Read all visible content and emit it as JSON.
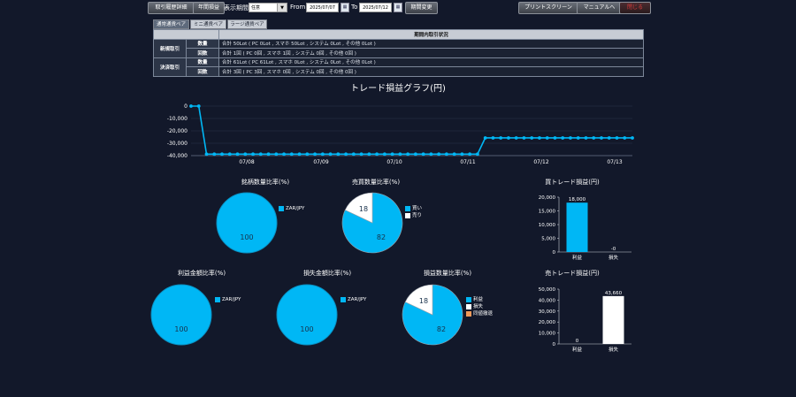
{
  "toolbar": {
    "trade_detail": "取引履歴詳細",
    "annual_pnl": "年間損益",
    "period_label": "表示期間",
    "period_value": "任意",
    "from_label": "From",
    "from_date": "2025/07/07",
    "to_label": "To",
    "to_date": "2025/07/12",
    "change_period": "期間変更",
    "print_screen": "プリントスクリーン",
    "manual": "マニュアルへ",
    "close": "閉じる"
  },
  "tabs": [
    "通常通貨ペア",
    "ミニ通貨ペア",
    "ラージ通貨ペア"
  ],
  "summary": {
    "header": "期間内取引状況",
    "groups": [
      {
        "label": "新規取引",
        "rows": [
          {
            "label": "数量",
            "value": "合計 50Lot ( PC 0Lot , スマホ 50Lot , システム 0Lot , その他 0Lot )"
          },
          {
            "label": "回数",
            "value": "合計 1回 ( PC 0回 , スマホ 1回 , システム 0回 , その他 0回 )"
          }
        ]
      },
      {
        "label": "決済取引",
        "rows": [
          {
            "label": "数量",
            "value": "合計 61Lot ( PC 61Lot , スマホ 0Lot , システム 0Lot , その他 0Lot )"
          },
          {
            "label": "回数",
            "value": "合計 3回 ( PC 3回 , スマホ 0回 , システム 0回 , その他 0回 )"
          }
        ]
      }
    ]
  },
  "colors": {
    "blue": "#00b7f5",
    "white": "#ffffff",
    "orange": "#f09a5a"
  },
  "chart_data": [
    {
      "type": "line",
      "title": "トレード損益グラフ(円)",
      "yticks": [
        0,
        -10000,
        -20000,
        -30000,
        -40000
      ],
      "ytick_labels": [
        "0",
        "-10,000",
        "-20,000",
        "-30,000",
        "-40,000"
      ],
      "ylim": [
        -40000,
        0
      ],
      "xtick_labels": [
        "07/08",
        "07/09",
        "07/10",
        "07/11",
        "07/12",
        "07/13"
      ],
      "series": [
        {
          "values": [
            0,
            0,
            -38800,
            -38800,
            -38800,
            -38800,
            -38800,
            -38800,
            -38800,
            -38800,
            -38800,
            -38800,
            -38800,
            -38800,
            -38800,
            -38800,
            -38800,
            -38800,
            -38800,
            -38800,
            -38800,
            -38800,
            -38800,
            -38800,
            -38800,
            -38800,
            -38800,
            -38800,
            -38800,
            -38800,
            -38800,
            -38800,
            -38800,
            -38800,
            -38800,
            -38800,
            -38800,
            -38800,
            -25700,
            -25700,
            -25700,
            -25700,
            -25700,
            -25700,
            -25700,
            -25700,
            -25700,
            -25700,
            -25700,
            -25700,
            -25700,
            -25700,
            -25700,
            -25700,
            -25700,
            -25700,
            -25700,
            -25700
          ]
        }
      ]
    },
    {
      "type": "pie",
      "title": "銘柄数量比率(%)",
      "labels": [
        "ZAR/JPY"
      ],
      "values": [
        100
      ]
    },
    {
      "type": "pie",
      "title": "売買数量比率(%)",
      "labels": [
        "買い",
        "売り"
      ],
      "values": [
        82,
        18
      ]
    },
    {
      "type": "bar",
      "title": "買トレード損益(円)",
      "categories": [
        "利益",
        "損失"
      ],
      "values": [
        18000,
        0
      ],
      "value_labels": [
        "18,000",
        "-0"
      ],
      "ylim": [
        0,
        20000
      ],
      "ytick_labels": [
        "0",
        "5,000",
        "10,000",
        "15,000",
        "20,000"
      ]
    },
    {
      "type": "pie",
      "title": "利益金額比率(%)",
      "labels": [
        "ZAR/JPY"
      ],
      "values": [
        100
      ]
    },
    {
      "type": "pie",
      "title": "損失金額比率(%)",
      "labels": [
        "ZAR/JPY"
      ],
      "values": [
        100
      ]
    },
    {
      "type": "pie",
      "title": "損益数量比率(%)",
      "labels": [
        "利益",
        "損失",
        "同値撤退"
      ],
      "values": [
        82,
        18,
        0
      ]
    },
    {
      "type": "bar",
      "title": "売トレード損益(円)",
      "categories": [
        "利益",
        "損失"
      ],
      "values": [
        0,
        43660
      ],
      "value_labels": [
        "0",
        "43,660"
      ],
      "ylim": [
        0,
        50000
      ],
      "ytick_labels": [
        "0",
        "10,000",
        "20,000",
        "30,000",
        "40,000",
        "50,000"
      ]
    }
  ]
}
